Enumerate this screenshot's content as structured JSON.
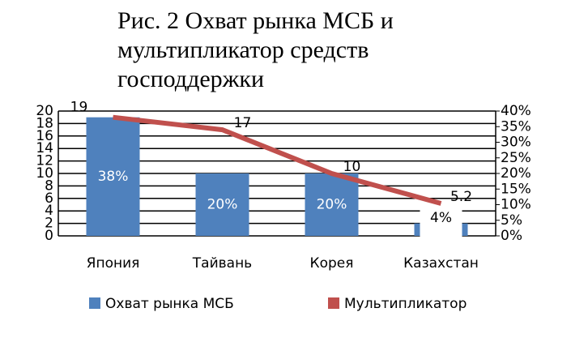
{
  "chart_data": {
    "type": "bar-line",
    "title": "Рис. 2 Охват рынка МСБ и мультипликатор средств господдержки",
    "categories": [
      "Япония",
      "Тайвань",
      "Корея",
      "Казахстан"
    ],
    "series": [
      {
        "name": "Охват рынка МСБ",
        "type": "bar",
        "axis": "y2",
        "color": "#4f81bd",
        "values": [
          38,
          20,
          20,
          4
        ],
        "value_labels": [
          "38%",
          "20%",
          "20%",
          "4%"
        ]
      },
      {
        "name": "Мультипликатор",
        "type": "line",
        "color": "#c0504d",
        "values": [
          19,
          17,
          10,
          5.2
        ]
      }
    ],
    "ylim": [
      0,
      20
    ],
    "yticks": [
      0,
      2,
      4,
      6,
      8,
      10,
      12,
      14,
      16,
      18,
      20
    ],
    "y2lim": [
      0,
      40
    ],
    "y2ticks": [
      {
        "value": 0,
        "label": "0%"
      },
      {
        "value": 5,
        "label": "5%"
      },
      {
        "value": 10,
        "label": "10%"
      },
      {
        "value": 15,
        "label": "15%"
      },
      {
        "value": 20,
        "label": "20%"
      },
      {
        "value": 25,
        "label": "25%"
      },
      {
        "value": 30,
        "label": "30%"
      },
      {
        "value": 35,
        "label": "35%"
      },
      {
        "value": 40,
        "label": "40%"
      }
    ],
    "grid": true
  }
}
